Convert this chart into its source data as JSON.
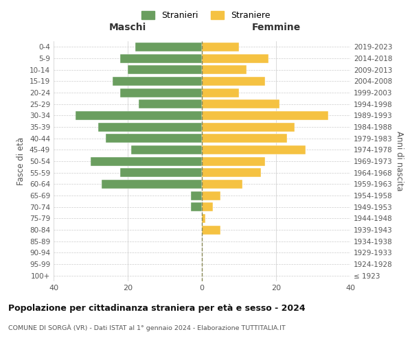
{
  "age_groups": [
    "100+",
    "95-99",
    "90-94",
    "85-89",
    "80-84",
    "75-79",
    "70-74",
    "65-69",
    "60-64",
    "55-59",
    "50-54",
    "45-49",
    "40-44",
    "35-39",
    "30-34",
    "25-29",
    "20-24",
    "15-19",
    "10-14",
    "5-9",
    "0-4"
  ],
  "birth_years": [
    "≤ 1923",
    "1924-1928",
    "1929-1933",
    "1934-1938",
    "1939-1943",
    "1944-1948",
    "1949-1953",
    "1954-1958",
    "1959-1963",
    "1964-1968",
    "1969-1973",
    "1974-1978",
    "1979-1983",
    "1984-1988",
    "1989-1993",
    "1994-1998",
    "1999-2003",
    "2004-2008",
    "2009-2013",
    "2014-2018",
    "2019-2023"
  ],
  "males": [
    0,
    0,
    0,
    0,
    0,
    0,
    3,
    3,
    27,
    22,
    30,
    19,
    26,
    28,
    34,
    17,
    22,
    24,
    20,
    22,
    18
  ],
  "females": [
    0,
    0,
    0,
    0,
    5,
    1,
    3,
    5,
    11,
    16,
    17,
    28,
    23,
    25,
    34,
    21,
    10,
    17,
    12,
    18,
    10
  ],
  "male_color": "#6a9e5f",
  "female_color": "#f5c242",
  "background_color": "#ffffff",
  "grid_color": "#cccccc",
  "title": "Popolazione per cittadinanza straniera per età e sesso - 2024",
  "subtitle": "COMUNE DI SORGÀ (VR) - Dati ISTAT al 1° gennaio 2024 - Elaborazione TUTTITALIA.IT",
  "xlabel_left": "Maschi",
  "xlabel_right": "Femmine",
  "ylabel_left": "Fasce di età",
  "ylabel_right": "Anni di nascita",
  "legend_males": "Stranieri",
  "legend_females": "Straniere",
  "xlim": 40,
  "dashed_line_color": "#888855"
}
